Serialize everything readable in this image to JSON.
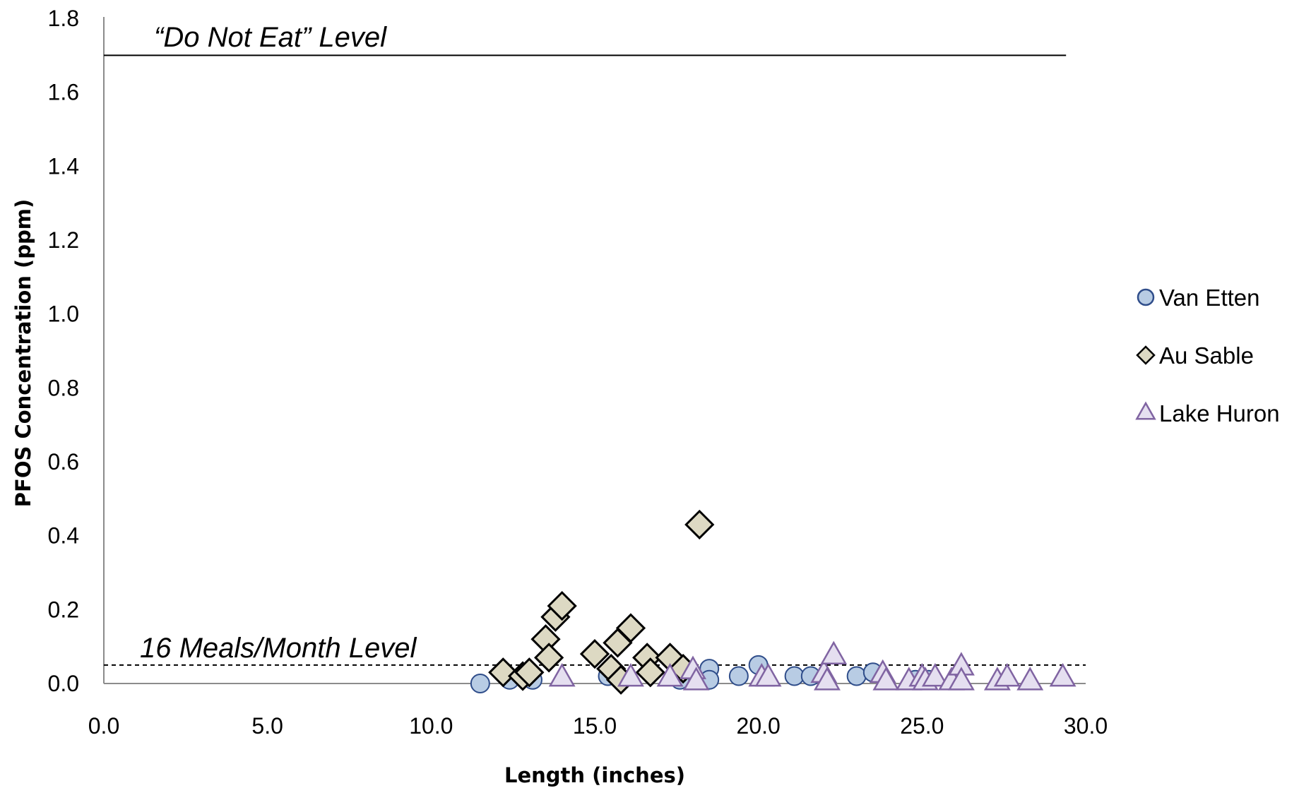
{
  "chart_data": {
    "type": "scatter",
    "title": "",
    "xlabel": "Length (inches)",
    "ylabel": "PFOS Concentration (ppm)",
    "xlim": [
      0,
      30
    ],
    "ylim": [
      0,
      1.8
    ],
    "x_ticks": [
      0,
      5,
      10,
      15,
      20,
      25,
      30
    ],
    "y_ticks": [
      0,
      0.2,
      0.4,
      0.6,
      0.8,
      1.0,
      1.2,
      1.4,
      1.6,
      1.8
    ],
    "x_tick_labels": [
      "0.0",
      "5.0",
      "10.0",
      "15.0",
      "20.0",
      "25.0",
      "30.0"
    ],
    "y_tick_labels": [
      "0.0",
      "0.2",
      "0.4",
      "0.6",
      "0.8",
      "1.0",
      "1.2",
      "1.4",
      "1.6",
      "1.8"
    ],
    "grid": false,
    "legend_position": "right",
    "reference_lines": [
      {
        "label": "“Do Not Eat” Level",
        "y": 1.7,
        "style": "solid",
        "x_range": [
          0,
          29.4
        ]
      },
      {
        "label": "16 Meals/Month Level",
        "y": 0.05,
        "style": "dashed",
        "x_range": [
          0,
          30
        ]
      }
    ],
    "series": [
      {
        "name": "Van Etten",
        "marker": "circle",
        "fill": "#b8cce4",
        "stroke": "#2f4d8a",
        "points": [
          [
            11.5,
            0.0
          ],
          [
            12.4,
            0.01
          ],
          [
            13.1,
            0.01
          ],
          [
            15.4,
            0.02
          ],
          [
            17.6,
            0.01
          ],
          [
            18.5,
            0.04
          ],
          [
            18.5,
            0.01
          ],
          [
            19.4,
            0.02
          ],
          [
            20.0,
            0.05
          ],
          [
            21.1,
            0.02
          ],
          [
            21.6,
            0.02
          ],
          [
            23.0,
            0.02
          ],
          [
            23.5,
            0.03
          ],
          [
            24.8,
            0.01
          ],
          [
            25.2,
            0.01
          ]
        ]
      },
      {
        "name": "Au Sable",
        "marker": "diamond",
        "fill": "#ddd9c3",
        "stroke": "#000000",
        "points": [
          [
            12.2,
            0.03
          ],
          [
            12.8,
            0.02
          ],
          [
            13.0,
            0.03
          ],
          [
            13.5,
            0.12
          ],
          [
            13.6,
            0.07
          ],
          [
            13.8,
            0.18
          ],
          [
            14.0,
            0.21
          ],
          [
            15.0,
            0.08
          ],
          [
            15.5,
            0.04
          ],
          [
            15.7,
            0.11
          ],
          [
            15.8,
            0.01
          ],
          [
            16.1,
            0.15
          ],
          [
            16.6,
            0.07
          ],
          [
            16.7,
            0.03
          ],
          [
            17.3,
            0.07
          ],
          [
            17.7,
            0.04
          ],
          [
            18.2,
            0.43
          ]
        ]
      },
      {
        "name": "Lake Huron",
        "marker": "triangle",
        "fill": "#e5dff0",
        "stroke": "#8064a2",
        "points": [
          [
            14.0,
            0.02
          ],
          [
            16.1,
            0.02
          ],
          [
            17.3,
            0.02
          ],
          [
            18.0,
            0.04
          ],
          [
            18.1,
            0.01
          ],
          [
            20.1,
            0.02
          ],
          [
            20.3,
            0.02
          ],
          [
            22.0,
            0.03
          ],
          [
            22.1,
            0.01
          ],
          [
            22.3,
            0.08
          ],
          [
            23.8,
            0.03
          ],
          [
            23.9,
            0.01
          ],
          [
            24.6,
            0.01
          ],
          [
            25.0,
            0.02
          ],
          [
            25.1,
            0.01
          ],
          [
            25.4,
            0.02
          ],
          [
            25.9,
            0.01
          ],
          [
            26.2,
            0.05
          ],
          [
            26.2,
            0.01
          ],
          [
            27.3,
            0.01
          ],
          [
            27.6,
            0.02
          ],
          [
            28.3,
            0.01
          ],
          [
            29.3,
            0.02
          ]
        ]
      }
    ]
  }
}
